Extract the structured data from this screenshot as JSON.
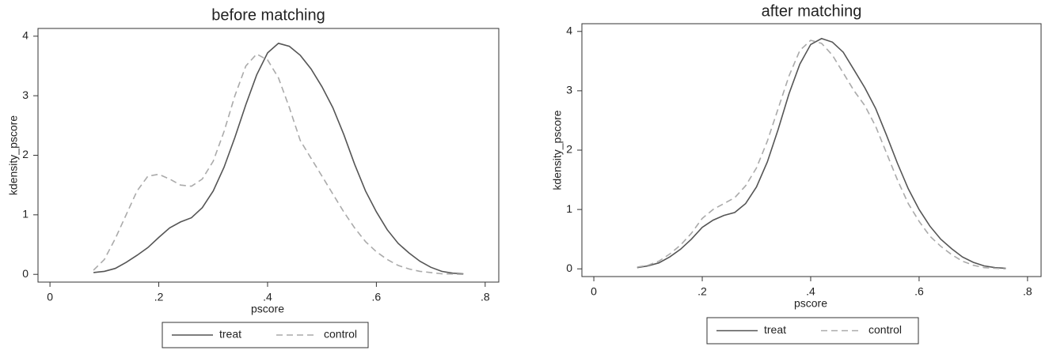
{
  "chart_data": [
    {
      "type": "line",
      "title": "before matching",
      "x_label": "pscore",
      "y_label": "kdensity_pscore",
      "x": [
        0.08,
        0.1,
        0.12,
        0.14,
        0.16,
        0.18,
        0.2,
        0.22,
        0.24,
        0.26,
        0.28,
        0.3,
        0.32,
        0.34,
        0.36,
        0.38,
        0.4,
        0.42,
        0.44,
        0.46,
        0.48,
        0.5,
        0.52,
        0.54,
        0.56,
        0.58,
        0.6,
        0.62,
        0.64,
        0.66,
        0.68,
        0.7,
        0.72,
        0.74,
        0.76
      ],
      "series": [
        {
          "name": "treat",
          "color": "#555555",
          "style": "solid",
          "values": [
            0.03,
            0.05,
            0.1,
            0.2,
            0.32,
            0.45,
            0.62,
            0.78,
            0.88,
            0.95,
            1.12,
            1.4,
            1.8,
            2.3,
            2.85,
            3.35,
            3.72,
            3.88,
            3.83,
            3.68,
            3.45,
            3.15,
            2.8,
            2.35,
            1.85,
            1.4,
            1.05,
            0.75,
            0.52,
            0.36,
            0.22,
            0.12,
            0.05,
            0.02,
            0.01
          ]
        },
        {
          "name": "control",
          "color": "#aaaaaa",
          "style": "dashed",
          "values": [
            0.07,
            0.25,
            0.6,
            1.0,
            1.4,
            1.65,
            1.68,
            1.6,
            1.5,
            1.48,
            1.6,
            1.9,
            2.4,
            3.0,
            3.5,
            3.7,
            3.6,
            3.3,
            2.8,
            2.25,
            1.95,
            1.65,
            1.35,
            1.05,
            0.78,
            0.55,
            0.38,
            0.25,
            0.15,
            0.09,
            0.05,
            0.03,
            0.01,
            0.005,
            0
          ]
        }
      ],
      "xlim": [
        -0.022,
        0.825
      ],
      "ylim": [
        -0.13,
        4.13
      ],
      "xticks": [
        0,
        {
          "value": 0.2,
          "label": ".2"
        },
        {
          "value": 0.4,
          "label": ".4"
        },
        {
          "value": 0.6,
          "label": ".6"
        },
        {
          "value": 0.8,
          "label": ".8"
        }
      ],
      "yticks": [
        0,
        1,
        2,
        3,
        4
      ],
      "grid": false,
      "legend": "bottom"
    },
    {
      "type": "line",
      "title": "after matching",
      "x_label": "pscore",
      "y_label": "kdensity_pscore",
      "x": [
        0.08,
        0.1,
        0.12,
        0.14,
        0.16,
        0.18,
        0.2,
        0.22,
        0.24,
        0.26,
        0.28,
        0.3,
        0.32,
        0.34,
        0.36,
        0.38,
        0.4,
        0.42,
        0.44,
        0.46,
        0.48,
        0.5,
        0.52,
        0.54,
        0.56,
        0.58,
        0.6,
        0.62,
        0.64,
        0.66,
        0.68,
        0.7,
        0.72,
        0.74,
        0.76
      ],
      "series": [
        {
          "name": "treat",
          "color": "#555555",
          "style": "solid",
          "values": [
            0.02,
            0.05,
            0.1,
            0.2,
            0.33,
            0.5,
            0.7,
            0.82,
            0.9,
            0.95,
            1.1,
            1.38,
            1.8,
            2.35,
            2.95,
            3.45,
            3.78,
            3.88,
            3.82,
            3.65,
            3.35,
            3.05,
            2.7,
            2.25,
            1.78,
            1.35,
            1.0,
            0.72,
            0.5,
            0.34,
            0.2,
            0.11,
            0.05,
            0.02,
            0.01
          ]
        },
        {
          "name": "control",
          "color": "#aaaaaa",
          "style": "dashed",
          "values": [
            0.03,
            0.06,
            0.13,
            0.25,
            0.4,
            0.6,
            0.85,
            1.0,
            1.1,
            1.2,
            1.4,
            1.7,
            2.15,
            2.7,
            3.25,
            3.68,
            3.85,
            3.8,
            3.6,
            3.3,
            3.0,
            2.75,
            2.4,
            1.95,
            1.5,
            1.1,
            0.8,
            0.55,
            0.38,
            0.24,
            0.13,
            0.06,
            0.02,
            0.01,
            0
          ]
        }
      ],
      "xlim": [
        -0.022,
        0.825
      ],
      "ylim": [
        -0.13,
        4.13
      ],
      "xticks": [
        0,
        {
          "value": 0.2,
          "label": ".2"
        },
        {
          "value": 0.4,
          "label": ".4"
        },
        {
          "value": 0.6,
          "label": ".6"
        },
        {
          "value": 0.8,
          "label": ".8"
        }
      ],
      "yticks": [
        0,
        1,
        2,
        3,
        4
      ],
      "grid": false,
      "legend": "bottom"
    }
  ]
}
